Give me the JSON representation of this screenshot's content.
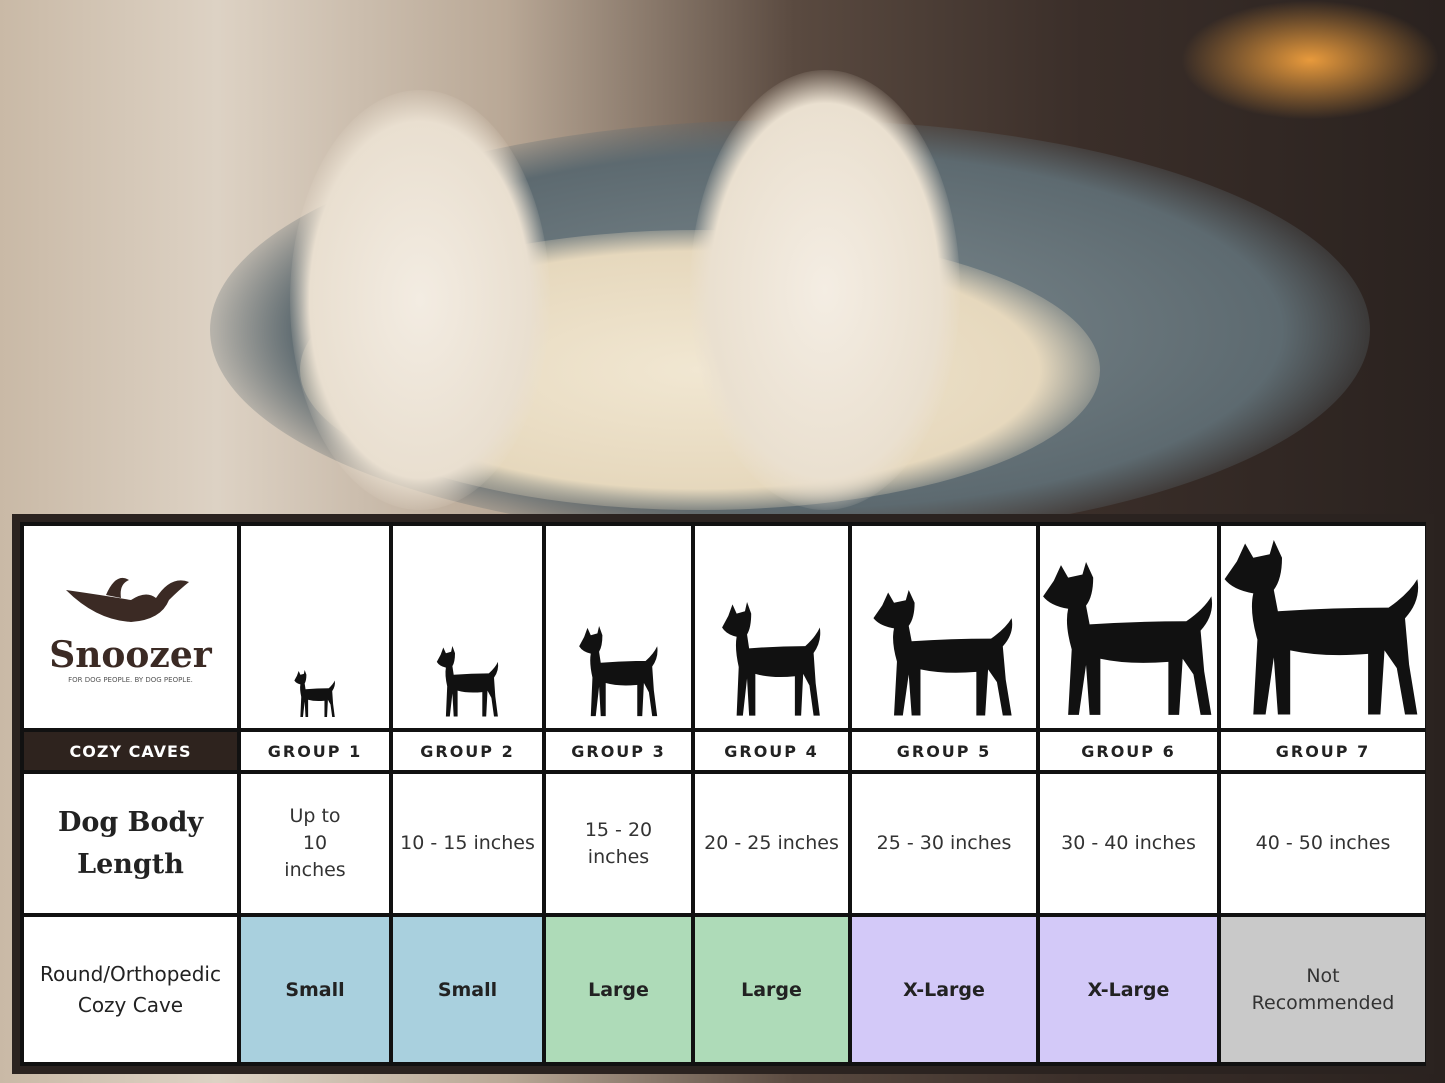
{
  "brand": {
    "name": "Snoozer",
    "tagline": "FOR DOG PEOPLE. BY DOG PEOPLE.",
    "product": "COZY CAVES"
  },
  "colors": {
    "small": "#a9d0de",
    "large": "#aedbb8",
    "xlarge": "#d3c9f8",
    "not_recommended": "#c9c9c9",
    "header_dark": "#2e231e"
  },
  "rows": {
    "length_label": "Dog Body Length",
    "cave_label": "Round/Orthopedic Cozy Cave"
  },
  "groups": [
    {
      "label": "GROUP 1",
      "length": "Up to 10 inches",
      "size": "Small",
      "color": "#a9d0de"
    },
    {
      "label": "GROUP 2",
      "length": "10 - 15 inches",
      "size": "Small",
      "color": "#a9d0de"
    },
    {
      "label": "GROUP 3",
      "length": "15 - 20 inches",
      "size": "Large",
      "color": "#aedbb8"
    },
    {
      "label": "GROUP 4",
      "length": "20 - 25 inches",
      "size": "Large",
      "color": "#aedbb8"
    },
    {
      "label": "GROUP 5",
      "length": "25 - 30 inches",
      "size": "X-Large",
      "color": "#d3c9f8"
    },
    {
      "label": "GROUP 6",
      "length": "30 - 40 inches",
      "size": "X-Large",
      "color": "#d3c9f8"
    },
    {
      "label": "GROUP 7",
      "length": "40 - 50 inches",
      "size": "Not Recommended",
      "color": "#c9c9c9"
    }
  ]
}
